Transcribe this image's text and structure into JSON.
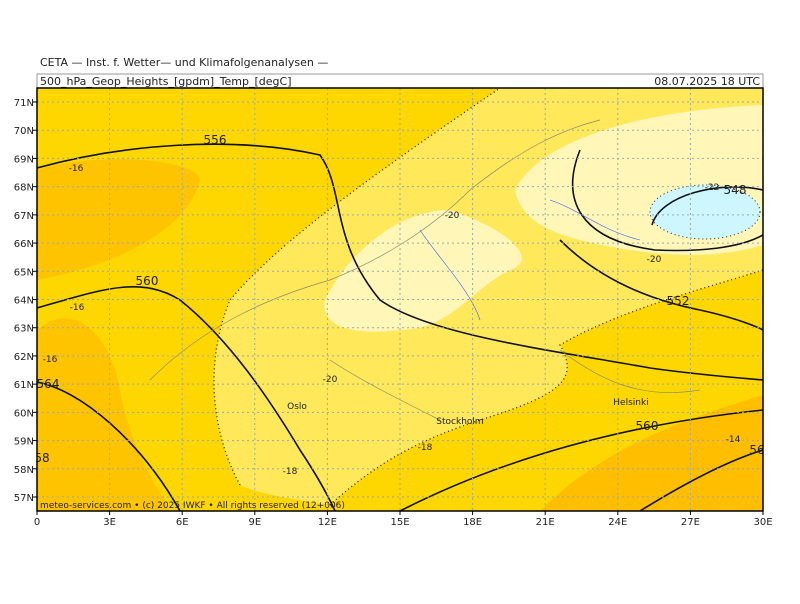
{
  "header": {
    "institute": "CETA — Inst. f. Wetter— und Klimafolgenanalysen —",
    "product": "500_hPa_Geop_Heights_[gpdm]_Temp_[degC]",
    "valid": "08.07.2025 18 UTC"
  },
  "axes": {
    "lon": [
      "0",
      "3E",
      "6E",
      "9E",
      "12E",
      "15E",
      "18E",
      "21E",
      "24E",
      "27E",
      "30E"
    ],
    "lat": [
      "71N",
      "70N",
      "69N",
      "68N",
      "67N",
      "66N",
      "65N",
      "64N",
      "63N",
      "62N",
      "61N",
      "60N",
      "59N",
      "58N",
      "57N"
    ]
  },
  "contour_labels": [
    "556",
    "560",
    "564",
    "552",
    "548",
    "560",
    "56",
    "58",
    "-16",
    "-16",
    "-16",
    "-20",
    "-20",
    "-20",
    "-22",
    "-18",
    "-18",
    "-14"
  ],
  "cities": [
    "Oslo",
    "Stockholm",
    "Helsinki"
  ],
  "footer": "meteo-services.com • (c) 2025 IWKF • All rights reserved (12+006)"
}
